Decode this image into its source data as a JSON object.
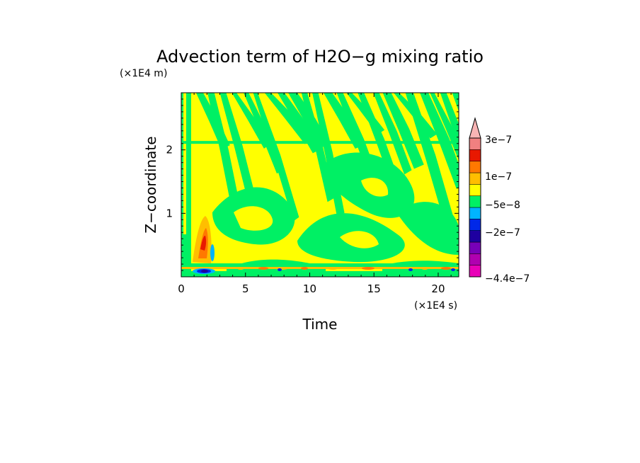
{
  "chart_data": {
    "type": "heatmap",
    "title": "Advection term of H2O−g mixing ratio",
    "xlabel": "Time",
    "ylabel": "Z−coordinate",
    "x_scale_note": "(×1E4 s)",
    "y_scale_note": "(×1E4 m)",
    "xlim": [
      0,
      21.6
    ],
    "ylim": [
      0,
      2.9
    ],
    "x_ticks": [
      0,
      5,
      10,
      15,
      20
    ],
    "x_tick_labels": [
      "0",
      "5",
      "10",
      "15",
      "20"
    ],
    "y_ticks": [
      1,
      2
    ],
    "y_tick_labels": [
      "1",
      "2"
    ],
    "colorbar": {
      "colors": [
        "#e800b8",
        "#b000b0",
        "#7800b8",
        "#1e00a0",
        "#0028e8",
        "#00b4ff",
        "#00f064",
        "#ffff00",
        "#ffbe00",
        "#ff7800",
        "#e81800",
        "#f08080",
        "#f8b4b4"
      ],
      "tick_labels": [
        "3e−7",
        "1e−7",
        "−5e−8",
        "−2e−7",
        "−4.4e−7"
      ],
      "extend": "max"
    },
    "field_description": {
      "background_class_value": "yellow",
      "band_class_value": "green",
      "near_surface_extremes": "orange/red/blue/purple"
    }
  }
}
